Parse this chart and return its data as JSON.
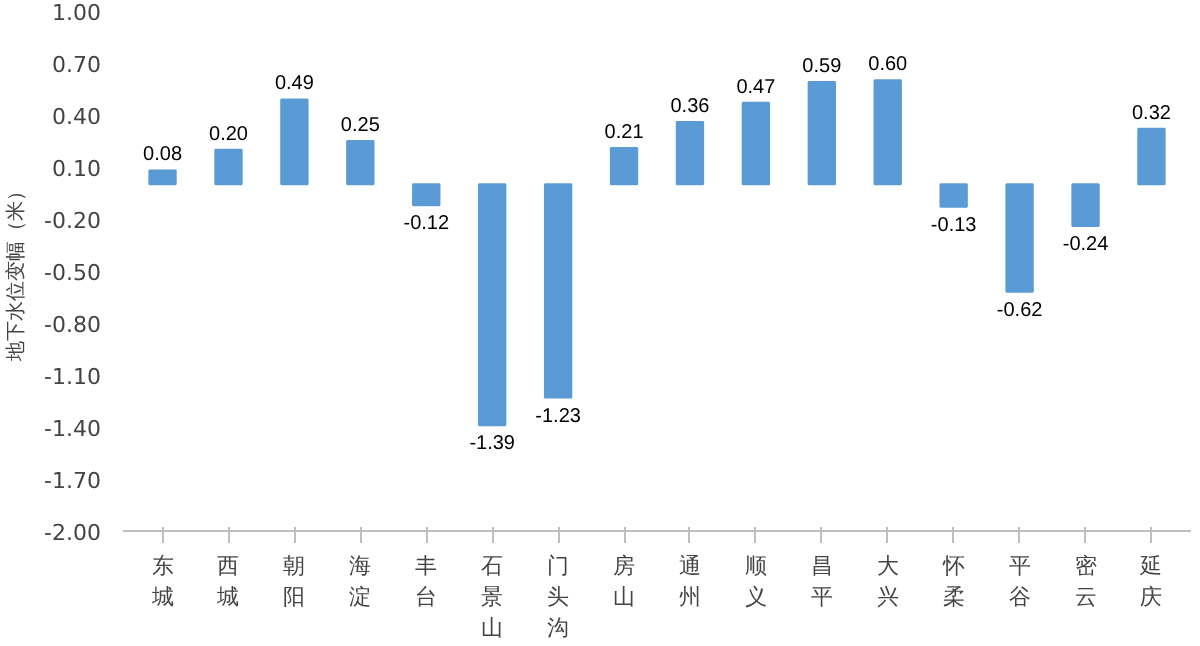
{
  "chart_data": {
    "type": "bar",
    "ylabel": "地下水位变幅（米）",
    "categories": [
      "东城",
      "西城",
      "朝阳",
      "海淀",
      "丰台",
      "石景山",
      "门头沟",
      "房山",
      "通州",
      "顺义",
      "昌平",
      "大兴",
      "怀柔",
      "平谷",
      "密云",
      "延庆"
    ],
    "values": [
      0.08,
      0.2,
      0.49,
      0.25,
      -0.12,
      -1.39,
      -1.23,
      0.21,
      0.36,
      0.47,
      0.59,
      0.6,
      -0.13,
      -0.62,
      -0.24,
      0.32
    ],
    "value_labels": [
      "0.08",
      "0.20",
      "0.49",
      "0.25",
      "-0.12",
      "-1.39",
      "-1.23",
      "0.21",
      "0.36",
      "0.47",
      "0.59",
      "0.60",
      "-0.13",
      "-0.62",
      "-0.24",
      "0.32"
    ],
    "color": "#5b9bd5",
    "ylim": [
      -2.0,
      1.0
    ],
    "yticks": [
      {
        "value": 1.0,
        "label": "1.00"
      },
      {
        "value": 0.7,
        "label": "0.70"
      },
      {
        "value": 0.4,
        "label": "0.40"
      },
      {
        "value": 0.1,
        "label": "0.10"
      },
      {
        "value": -0.2,
        "label": "-0.20"
      },
      {
        "value": -0.5,
        "label": "-0.50"
      },
      {
        "value": -0.8,
        "label": "-0.80"
      },
      {
        "value": -1.1,
        "label": "-1.10"
      },
      {
        "value": -1.4,
        "label": "-1.40"
      },
      {
        "value": -1.7,
        "label": "-1.70"
      },
      {
        "value": -2.0,
        "label": "-2.00"
      }
    ],
    "grid": false
  }
}
